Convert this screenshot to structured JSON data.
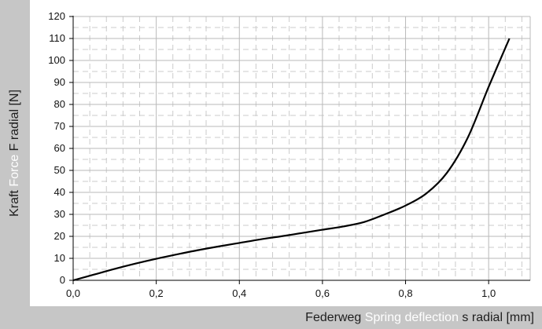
{
  "chart_data": {
    "type": "line",
    "title": "",
    "ylabel": {
      "de": "Kraft",
      "en": "Force",
      "symbol": "F radial [N]"
    },
    "xlabel": {
      "de": "Federweg",
      "en": "Spring deflection",
      "symbol": "s radial [mm]"
    },
    "xlim": [
      0,
      1.1
    ],
    "ylim": [
      0,
      120
    ],
    "x_ticks": [
      0,
      0.2,
      0.4,
      0.6,
      0.8,
      1.0
    ],
    "x_tick_labels": [
      "0,0",
      "0,2",
      "0,4",
      "0,6",
      "0,8",
      "1,0"
    ],
    "y_ticks": [
      0,
      10,
      20,
      30,
      40,
      50,
      60,
      70,
      80,
      90,
      100,
      110,
      120
    ],
    "y_tick_labels": [
      "0",
      "10",
      "20",
      "30",
      "40",
      "50",
      "60",
      "70",
      "80",
      "90",
      "100",
      "110",
      "120"
    ],
    "grid": true,
    "series": [
      {
        "x": [
          0,
          0.05,
          0.1,
          0.15,
          0.2,
          0.25,
          0.3,
          0.35,
          0.4,
          0.45,
          0.5,
          0.55,
          0.6,
          0.65,
          0.7,
          0.75,
          0.8,
          0.85,
          0.9,
          0.95,
          1.0,
          1.05
        ],
        "y": [
          0,
          2.6,
          5.2,
          7.6,
          9.8,
          11.8,
          13.7,
          15.4,
          17.0,
          18.6,
          20.0,
          21.5,
          23.0,
          24.5,
          26.5,
          30.0,
          34.0,
          39.5,
          49.0,
          65.0,
          88.0,
          110.0
        ]
      }
    ]
  },
  "colors": {
    "line": "#000000",
    "grid_major": "#b9b9b9",
    "grid_minor": "#cbcbcb",
    "background": "#c6c6c6"
  }
}
